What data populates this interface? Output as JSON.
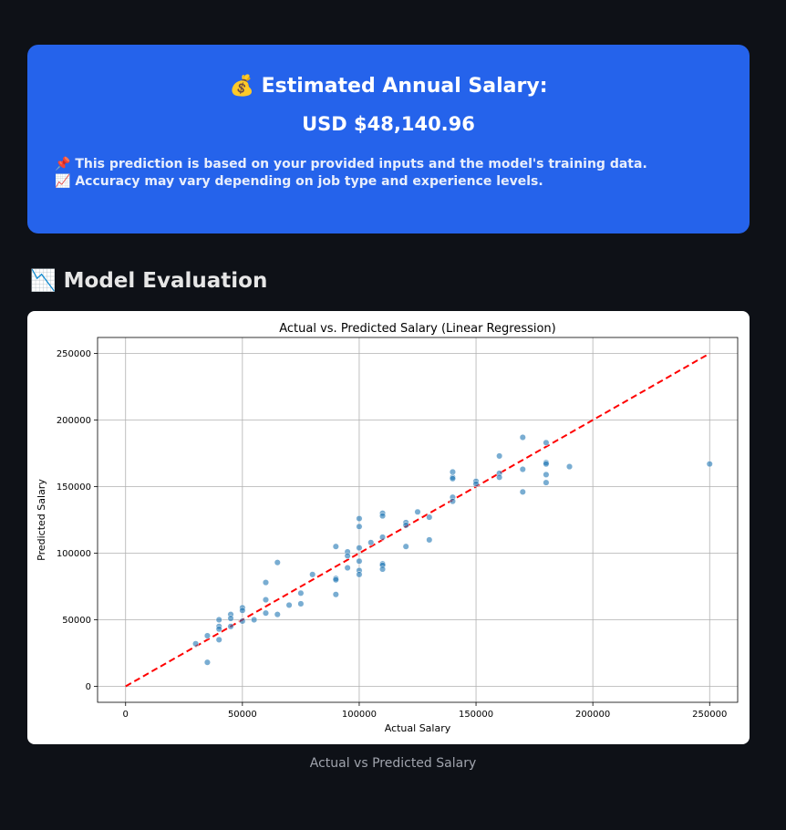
{
  "prediction": {
    "title_icon": "💰",
    "title": "Estimated Annual Salary:",
    "value": "USD $48,140.96",
    "note_1_icon": "📌",
    "note_1": "This prediction is based on your provided inputs and the model's training data.",
    "note_2_icon": "📈",
    "note_2": "Accuracy may vary depending on job type and experience levels."
  },
  "section": {
    "icon": "📉",
    "title": "Model Evaluation"
  },
  "caption": "Actual vs Predicted Salary",
  "colors": {
    "card_background": "#2563eb",
    "page_background": "#0e1117",
    "point_color": "#1f77b4",
    "reference_line": "#ff0000"
  },
  "chart_data": {
    "type": "scatter",
    "title": "Actual vs. Predicted Salary (Linear Regression)",
    "xlabel": "Actual Salary",
    "ylabel": "Predicted Salary",
    "xlim": [
      -12000,
      262000
    ],
    "ylim": [
      -12000,
      262000
    ],
    "grid": true,
    "x_ticks": [
      0,
      50000,
      100000,
      150000,
      200000,
      250000
    ],
    "y_ticks": [
      0,
      50000,
      100000,
      150000,
      200000,
      250000
    ],
    "reference_line": {
      "style": "dashed",
      "from": [
        0,
        0
      ],
      "to": [
        250000,
        250000
      ]
    },
    "points": [
      [
        30000,
        32000
      ],
      [
        35000,
        38000
      ],
      [
        35000,
        18000
      ],
      [
        40000,
        50000
      ],
      [
        40000,
        45000
      ],
      [
        40000,
        43000
      ],
      [
        40000,
        35000
      ],
      [
        45000,
        54000
      ],
      [
        45000,
        51000
      ],
      [
        45000,
        45000
      ],
      [
        50000,
        59000
      ],
      [
        50000,
        57000
      ],
      [
        50000,
        49000
      ],
      [
        55000,
        50000
      ],
      [
        60000,
        78000
      ],
      [
        60000,
        65000
      ],
      [
        60000,
        55000
      ],
      [
        65000,
        93000
      ],
      [
        65000,
        54000
      ],
      [
        70000,
        61000
      ],
      [
        75000,
        70000
      ],
      [
        75000,
        62000
      ],
      [
        80000,
        84000
      ],
      [
        90000,
        105000
      ],
      [
        90000,
        81000
      ],
      [
        90000,
        80000
      ],
      [
        90000,
        69000
      ],
      [
        95000,
        101000
      ],
      [
        95000,
        98000
      ],
      [
        95000,
        89000
      ],
      [
        100000,
        126000
      ],
      [
        100000,
        120000
      ],
      [
        100000,
        104000
      ],
      [
        100000,
        94000
      ],
      [
        100000,
        87000
      ],
      [
        100000,
        84000
      ],
      [
        105000,
        108000
      ],
      [
        110000,
        130000
      ],
      [
        110000,
        128000
      ],
      [
        110000,
        112000
      ],
      [
        110000,
        92000
      ],
      [
        110000,
        91000
      ],
      [
        110000,
        88000
      ],
      [
        120000,
        123000
      ],
      [
        120000,
        121000
      ],
      [
        120000,
        105000
      ],
      [
        125000,
        131000
      ],
      [
        130000,
        127000
      ],
      [
        130000,
        110000
      ],
      [
        140000,
        161000
      ],
      [
        140000,
        157000
      ],
      [
        140000,
        156000
      ],
      [
        140000,
        142000
      ],
      [
        140000,
        139000
      ],
      [
        150000,
        154000
      ],
      [
        150000,
        152000
      ],
      [
        160000,
        173000
      ],
      [
        160000,
        160000
      ],
      [
        160000,
        157000
      ],
      [
        170000,
        187000
      ],
      [
        170000,
        163000
      ],
      [
        170000,
        146000
      ],
      [
        180000,
        183000
      ],
      [
        180000,
        168000
      ],
      [
        180000,
        167000
      ],
      [
        180000,
        159000
      ],
      [
        180000,
        153000
      ],
      [
        190000,
        165000
      ],
      [
        250000,
        167000
      ]
    ]
  }
}
